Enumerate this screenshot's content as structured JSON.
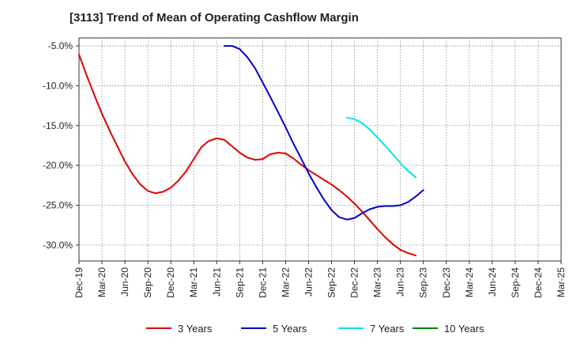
{
  "chart_data": {
    "type": "line",
    "title": "[3113]  Trend of Mean of Operating Cashflow Margin",
    "xlabel": "",
    "ylabel": "",
    "ylim": [
      -32.0,
      -4.0
    ],
    "yticks": [
      -5.0,
      -10.0,
      -15.0,
      -20.0,
      -25.0,
      -30.0
    ],
    "ytick_labels": [
      "-5.0%",
      "-10.0%",
      "-15.0%",
      "-20.0%",
      "-25.0%",
      "-30.0%"
    ],
    "categories": [
      "Dec-19",
      "Mar-20",
      "Jun-20",
      "Sep-20",
      "Dec-20",
      "Mar-21",
      "Jun-21",
      "Sep-21",
      "Dec-21",
      "Mar-22",
      "Jun-22",
      "Sep-22",
      "Dec-22",
      "Mar-23",
      "Jun-23",
      "Sep-23",
      "Dec-23",
      "Mar-24",
      "Jun-24",
      "Sep-24",
      "Dec-24",
      "Mar-25"
    ],
    "grid": true,
    "legend_position": "bottom",
    "series": [
      {
        "name": "3 Years",
        "color": "#dd0000",
        "points": [
          [
            0,
            -6.1
          ],
          [
            0.33,
            -8.7
          ],
          [
            0.67,
            -11.2
          ],
          [
            1,
            -13.5
          ],
          [
            1.33,
            -15.6
          ],
          [
            1.67,
            -17.6
          ],
          [
            2,
            -19.5
          ],
          [
            2.33,
            -21.1
          ],
          [
            2.67,
            -22.4
          ],
          [
            3,
            -23.2
          ],
          [
            3.33,
            -23.5
          ],
          [
            3.67,
            -23.3
          ],
          [
            4,
            -22.8
          ],
          [
            4.33,
            -21.9
          ],
          [
            4.67,
            -20.7
          ],
          [
            5,
            -19.2
          ],
          [
            5.33,
            -17.7
          ],
          [
            5.67,
            -16.9
          ],
          [
            6,
            -16.6
          ],
          [
            6.33,
            -16.8
          ],
          [
            6.67,
            -17.6
          ],
          [
            7,
            -18.4
          ],
          [
            7.33,
            -19.0
          ],
          [
            7.67,
            -19.3
          ],
          [
            8,
            -19.2
          ],
          [
            8.33,
            -18.6
          ],
          [
            8.67,
            -18.4
          ],
          [
            9,
            -18.5
          ],
          [
            9.33,
            -19.1
          ],
          [
            9.67,
            -19.9
          ],
          [
            10,
            -20.6
          ],
          [
            10.33,
            -21.2
          ],
          [
            10.67,
            -21.8
          ],
          [
            11,
            -22.4
          ],
          [
            11.33,
            -23.1
          ],
          [
            11.67,
            -23.9
          ],
          [
            12,
            -24.8
          ],
          [
            12.33,
            -25.8
          ],
          [
            12.67,
            -26.9
          ],
          [
            13,
            -28.0
          ],
          [
            13.33,
            -29.0
          ],
          [
            13.67,
            -29.9
          ],
          [
            14,
            -30.6
          ],
          [
            14.33,
            -31.0
          ],
          [
            14.67,
            -31.3
          ]
        ]
      },
      {
        "name": "5 Years",
        "color": "#0000cc",
        "points": [
          [
            6.33,
            -5.0
          ],
          [
            6.67,
            -5.0
          ],
          [
            7,
            -5.4
          ],
          [
            7.33,
            -6.4
          ],
          [
            7.67,
            -7.8
          ],
          [
            8,
            -9.6
          ],
          [
            8.33,
            -11.4
          ],
          [
            8.67,
            -13.3
          ],
          [
            9,
            -15.2
          ],
          [
            9.33,
            -17.2
          ],
          [
            9.67,
            -19.1
          ],
          [
            10,
            -21.0
          ],
          [
            10.33,
            -22.7
          ],
          [
            10.67,
            -24.3
          ],
          [
            11,
            -25.6
          ],
          [
            11.33,
            -26.5
          ],
          [
            11.67,
            -26.8
          ],
          [
            12,
            -26.6
          ],
          [
            12.33,
            -26.0
          ],
          [
            12.67,
            -25.5
          ],
          [
            13,
            -25.2
          ],
          [
            13.33,
            -25.1
          ],
          [
            13.67,
            -25.1
          ],
          [
            14,
            -25.0
          ],
          [
            14.33,
            -24.6
          ],
          [
            14.67,
            -23.9
          ],
          [
            15,
            -23.1
          ]
        ]
      },
      {
        "name": "7 Years",
        "color": "#00e5e5",
        "points": [
          [
            11.67,
            -14.0
          ],
          [
            12,
            -14.2
          ],
          [
            12.33,
            -14.7
          ],
          [
            12.67,
            -15.5
          ],
          [
            13,
            -16.5
          ],
          [
            13.33,
            -17.5
          ],
          [
            13.67,
            -18.6
          ],
          [
            14,
            -19.7
          ],
          [
            14.33,
            -20.7
          ],
          [
            14.67,
            -21.5
          ]
        ]
      },
      {
        "name": "10 Years",
        "color": "#008000",
        "points": []
      }
    ]
  }
}
